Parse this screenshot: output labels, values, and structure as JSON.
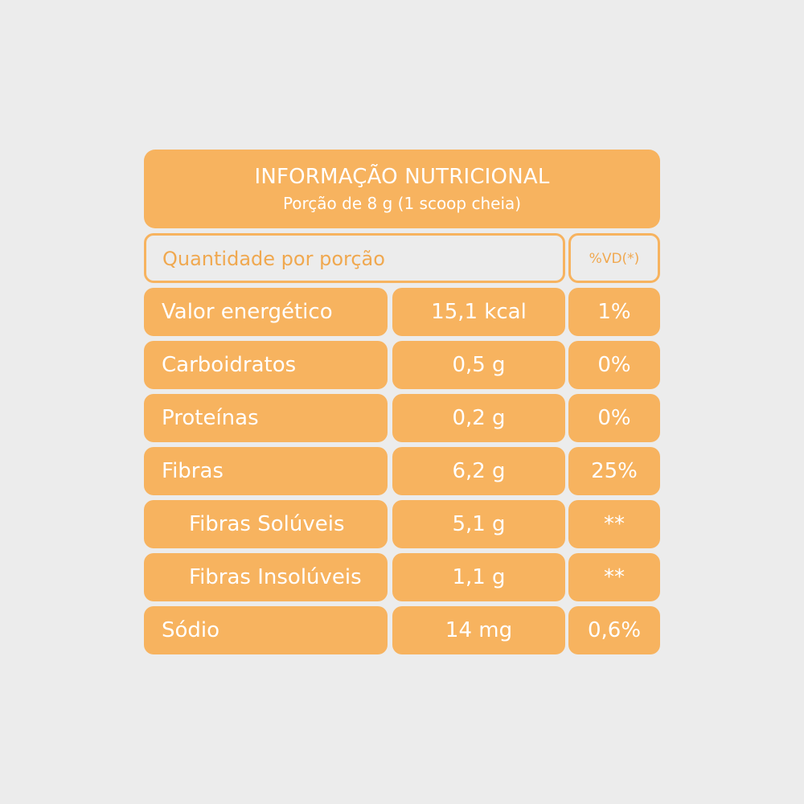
{
  "header": {
    "title": "INFORMAÇÃO NUTRICIONAL",
    "subtitle": "Porção de 8 g (1 scoop cheia)"
  },
  "columns": {
    "quantity_label": "Quantidade por porção",
    "vd_label": "%VD(*)"
  },
  "rows": [
    {
      "name": "Valor energético",
      "amount": "15,1 kcal",
      "percent_vd": "1%",
      "indented": false
    },
    {
      "name": "Carboidratos",
      "amount": "0,5 g",
      "percent_vd": "0%",
      "indented": false
    },
    {
      "name": "Proteínas",
      "amount": "0,2 g",
      "percent_vd": "0%",
      "indented": false
    },
    {
      "name": "Fibras",
      "amount": "6,2 g",
      "percent_vd": "25%",
      "indented": false
    },
    {
      "name": "Fibras Solúveis",
      "amount": "5,1 g",
      "percent_vd": "**",
      "indented": true
    },
    {
      "name": "Fibras Insolúveis",
      "amount": "1,1 g",
      "percent_vd": "**",
      "indented": true
    },
    {
      "name": "Sódio",
      "amount": "14 mg",
      "percent_vd": "0,6%",
      "indented": false
    }
  ],
  "colors": {
    "background": "#ececec",
    "accent_orange": "#f7b35f",
    "outline_text": "#f0a84f",
    "cell_text": "#ffffff"
  }
}
